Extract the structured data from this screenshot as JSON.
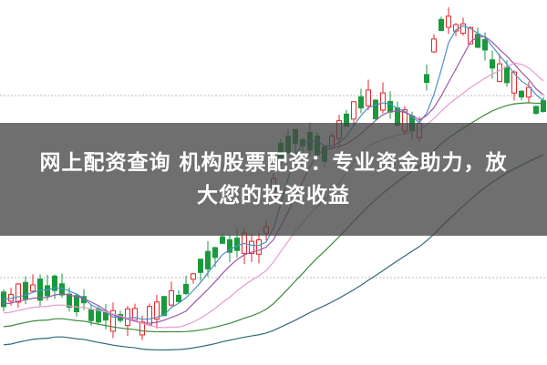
{
  "headline": {
    "line1": "网上配资查询 机构股票配资：专业资金助力，放",
    "line2": "大您的投资收益"
  },
  "colors": {
    "up": "#e8262a",
    "down": "#1a9a3c",
    "ma_blue": "#4a90c8",
    "ma_purple": "#9b5aa8",
    "ma_pink": "#e79ad0",
    "ma_green": "#3d8a3a",
    "ma_teal": "#2f6b7a",
    "band": "#464646"
  }
}
